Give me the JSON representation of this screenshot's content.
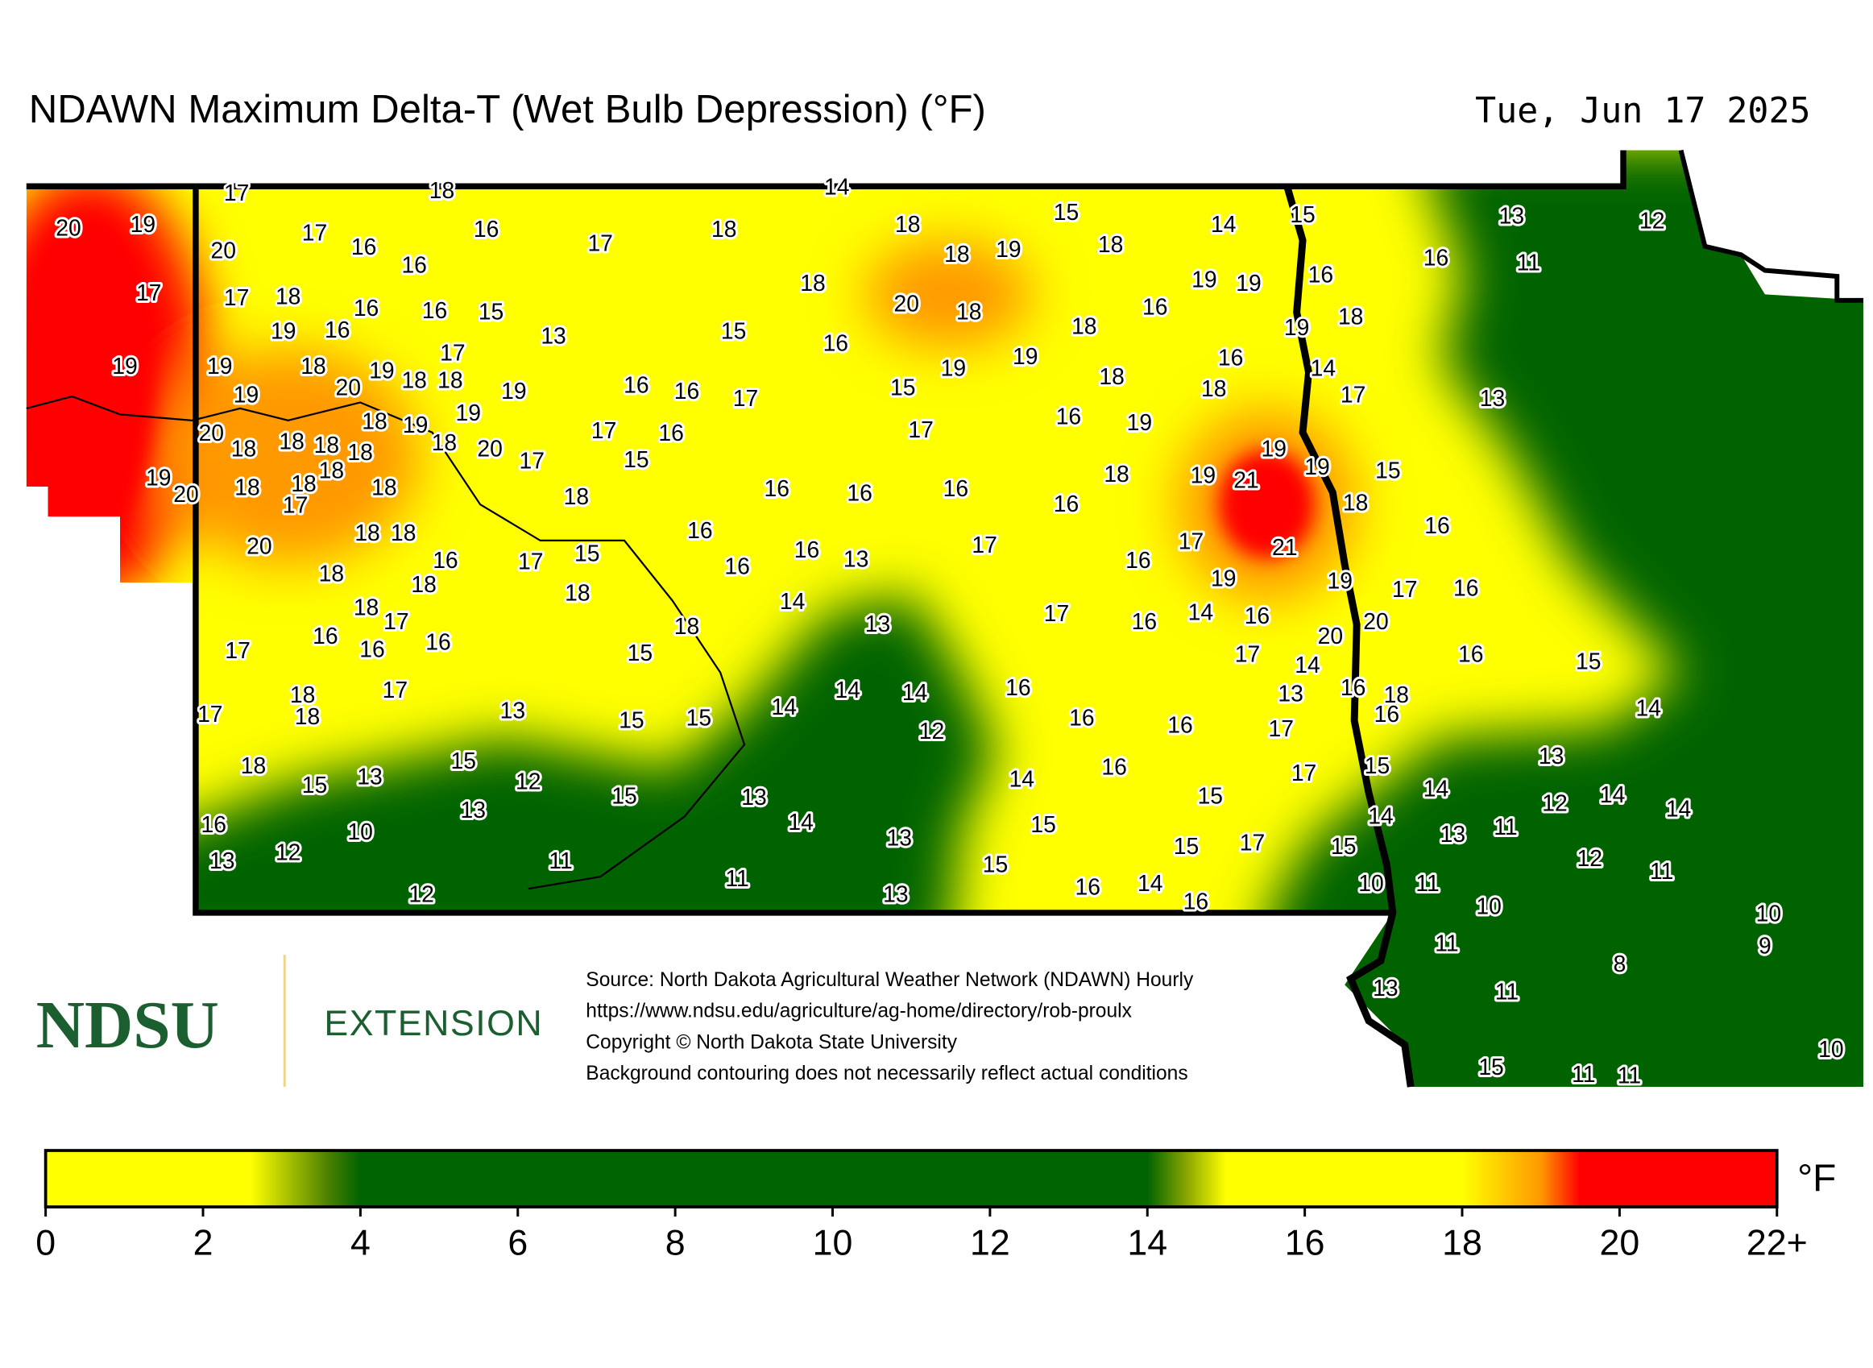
{
  "header": {
    "title": "NDAWN Maximum Delta-T (Wet Bulb Depression) (°F)",
    "date": "Tue, Jun 17 2025"
  },
  "stations": [
    17,
    18,
    14,
    20,
    19,
    20,
    17,
    16,
    16,
    16,
    17,
    18,
    18,
    18,
    19,
    15,
    18,
    14,
    15,
    13,
    12,
    16,
    11,
    17,
    17,
    18,
    16,
    16,
    15,
    16,
    19,
    13,
    18,
    20,
    18,
    15,
    16,
    16,
    19,
    19,
    16,
    19,
    18,
    18,
    19,
    19,
    18,
    19,
    17,
    18,
    18,
    20,
    19,
    19,
    16,
    16,
    17,
    15,
    19,
    19,
    16,
    14,
    18,
    18,
    17,
    13,
    20,
    18,
    19,
    19,
    18,
    18,
    18,
    18,
    18,
    20,
    17,
    17,
    16,
    15,
    17,
    16,
    19,
    18,
    18,
    19,
    20,
    18,
    18,
    17,
    18,
    16,
    16,
    16,
    16,
    18,
    19,
    21,
    19,
    19,
    15,
    18,
    16,
    18,
    18,
    20,
    16,
    17,
    15,
    16,
    16,
    13,
    17,
    16,
    17,
    21,
    18,
    18,
    16,
    19,
    19,
    17,
    16,
    18,
    17,
    18,
    14,
    13,
    17,
    16,
    14,
    16,
    20,
    20,
    16,
    16,
    16,
    18,
    17,
    15,
    17,
    14,
    16,
    15,
    17,
    18,
    14,
    14,
    16,
    13,
    16,
    18,
    16,
    17,
    18,
    13,
    15,
    15,
    14,
    12,
    16,
    16,
    17,
    14,
    18,
    15,
    13,
    15,
    12,
    15,
    13,
    14,
    16,
    15,
    17,
    15,
    14,
    13,
    12,
    14,
    14,
    13,
    14,
    15,
    14,
    13,
    11,
    16,
    10,
    12,
    13,
    13,
    15,
    17,
    15,
    12,
    11,
    11,
    11,
    15,
    16,
    14,
    10,
    11,
    10,
    12,
    13,
    16,
    10,
    11,
    9,
    8,
    13,
    11,
    10,
    15,
    11,
    11
  ],
  "logo": {
    "name": "NDSU",
    "unit": "EXTENSION"
  },
  "source": {
    "lines": [
      "Source: North Dakota Agricultural Weather Network (NDAWN) Hourly",
      "https://www.ndsu.edu/agriculture/ag-home/directory/rob-proulx",
      "Copyright © North Dakota State University",
      "Background contouring does not necessarily reflect actual conditions"
    ]
  },
  "colorbar": {
    "range": [
      0,
      22
    ],
    "unit": "°F",
    "ticks": [
      0,
      2,
      4,
      6,
      8,
      10,
      12,
      14,
      16,
      18,
      20,
      {
        "value": 22,
        "label": "22+"
      }
    ],
    "stops": [
      {
        "value": 0,
        "color": "#ffff00"
      },
      {
        "value": 2.6,
        "color": "#ffff00"
      },
      {
        "value": 3.6,
        "color": "#4a7f00"
      },
      {
        "value": 4,
        "color": "#006400"
      },
      {
        "value": 14,
        "color": "#006400"
      },
      {
        "value": 14.5,
        "color": "#8aa600"
      },
      {
        "value": 15,
        "color": "#ffff00"
      },
      {
        "value": 18,
        "color": "#ffff00"
      },
      {
        "value": 19,
        "color": "#ff9900"
      },
      {
        "value": 19.5,
        "color": "#ff0000"
      },
      {
        "value": 22,
        "color": "#ff0000"
      }
    ]
  }
}
